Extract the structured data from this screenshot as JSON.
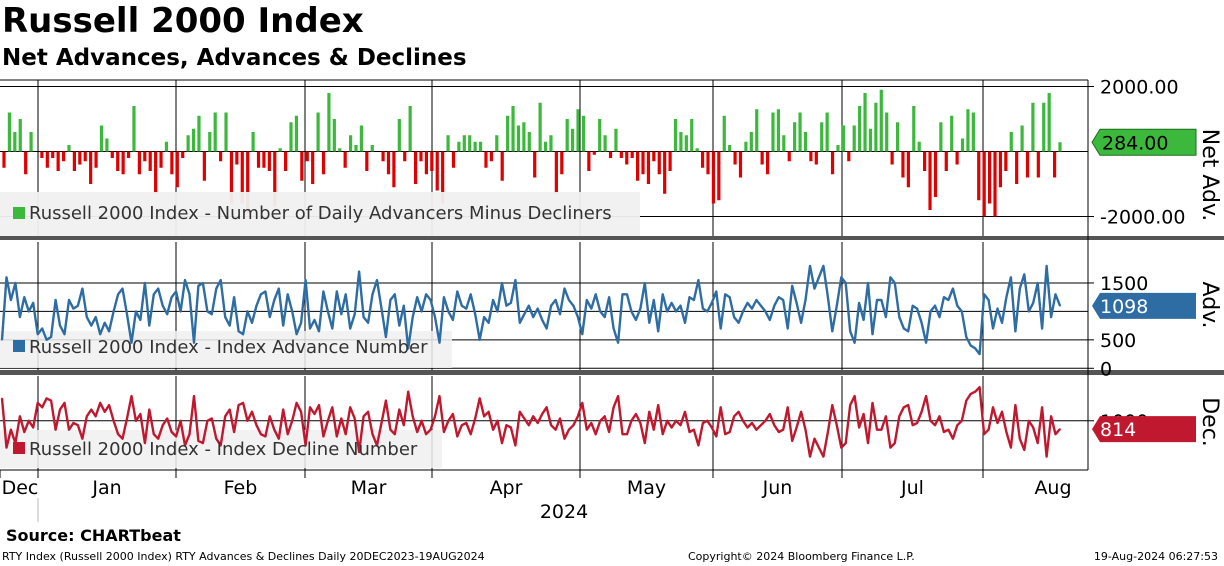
{
  "header": {
    "title": "Russell 2000 Index",
    "subtitle": "Net Advances, Advances & Declines"
  },
  "footer": {
    "source": "Source: CHARTbeat",
    "description": "RTY Index (Russell 2000 Index) RTY Advances & Declines  Daily 20DEC2023-19AUG2024",
    "copyright": "Copyright© 2024 Bloomberg Finance L.P.",
    "timestamp": "19-Aug-2024 06:27:53"
  },
  "colors": {
    "net_positive": "#3cb83c",
    "net_negative": "#e00000",
    "advances": "#2e6da4",
    "declines": "#c0182e",
    "net_tag": "#3cb83c",
    "adv_tag": "#2e6da4",
    "dec_tag": "#c0182e"
  },
  "chart_data": [
    {
      "type": "bar",
      "panel": "net",
      "axis_title": "Net Adv.",
      "legend": "Russell 2000 Index - Number of Daily Advancers Minus Decliners",
      "yticks": [
        "2000.00",
        "-2000.00"
      ],
      "ylim": [
        -2600,
        2200
      ],
      "last_value": 284,
      "last_label": "284.00",
      "values": [
        -500,
        1200,
        600,
        1000,
        -700,
        600,
        0,
        -200,
        -500,
        -200,
        -600,
        -300,
        200,
        -600,
        -400,
        -300,
        -1000,
        -500,
        800,
        400,
        -200,
        -600,
        -700,
        -200,
        1400,
        -700,
        -300,
        -600,
        -1300,
        -500,
        300,
        -700,
        -1100,
        -200,
        500,
        700,
        1100,
        -900,
        600,
        1200,
        -300,
        1200,
        -1600,
        -400,
        -1600,
        -1900,
        600,
        -500,
        -500,
        -600,
        -1700,
        100,
        -600,
        900,
        1100,
        -900,
        -300,
        -1000,
        1200,
        -700,
        1800,
        1000,
        100,
        -500,
        500,
        200,
        800,
        -600,
        200,
        0,
        -300,
        -700,
        -1100,
        1000,
        -300,
        1400,
        -1000,
        -300,
        -700,
        -600,
        -1200,
        -1600,
        500,
        -500,
        300,
        500,
        500,
        300,
        300,
        -500,
        -300,
        500,
        -900,
        1100,
        1400,
        800,
        900,
        600,
        -800,
        1500,
        300,
        500,
        -1300,
        -700,
        1000,
        700,
        1300,
        1100,
        -600,
        -100,
        1000,
        500,
        -200,
        700,
        -200,
        -400,
        -200,
        -900,
        -700,
        -1000,
        -300,
        -700,
        -1300,
        -600,
        1000,
        600,
        500,
        1000,
        100,
        -500,
        -700,
        -1600,
        -1500,
        1100,
        200,
        -400,
        -800,
        300,
        600,
        1300,
        -400,
        -700,
        1200,
        1300,
        500,
        -300,
        900,
        1200,
        600,
        -300,
        -400,
        900,
        1200,
        -700,
        200,
        800,
        -300,
        800,
        1400,
        1800,
        700,
        1500,
        1900,
        1200,
        -400,
        900,
        -800,
        -1100,
        1400,
        300,
        -600,
        -1800,
        -1400,
        900,
        -600,
        1100,
        -400,
        400,
        1300,
        1200,
        -1500,
        -2000,
        -1600,
        -2000,
        -1100,
        -600,
        600,
        -1000,
        800,
        -800,
        1500,
        -800,
        1500,
        1800,
        -800,
        284
      ]
    },
    {
      "type": "line",
      "panel": "advances",
      "axis_title": "Adv.",
      "legend": "Russell 2000 Index - Index Advance Number",
      "yticks": [
        1500,
        500,
        0
      ],
      "ylim": [
        -30,
        2220
      ],
      "last_value": 1098,
      "last_label": "1098",
      "values": [
        500,
        1600,
        1200,
        1500,
        900,
        1250,
        1000,
        1150,
        600,
        700,
        500,
        550,
        1200,
        750,
        600,
        1200,
        1050,
        1100,
        1400,
        900,
        750,
        900,
        600,
        800,
        650,
        1000,
        1300,
        1400,
        950,
        450,
        1000,
        850,
        1500,
        750,
        1300,
        1400,
        1100,
        950,
        1250,
        1350,
        1000,
        1550,
        1300,
        450,
        1450,
        1500,
        1000,
        950,
        1400,
        1550,
        900,
        750,
        1250,
        650,
        600,
        1000,
        800,
        1100,
        1300,
        1350,
        900,
        1200,
        1400,
        750,
        1300,
        1000,
        600,
        800,
        1550,
        700,
        850,
        650,
        1350,
        1000,
        700,
        1350,
        950,
        1300,
        700,
        950,
        1700,
        900,
        800,
        1300,
        1550,
        1050,
        550,
        1200,
        1300,
        750,
        1100,
        350,
        900,
        1250,
        1000,
        1300,
        1200,
        900,
        450,
        1250,
        1000,
        850,
        1350,
        1100,
        1050,
        1300,
        950,
        500,
        900,
        800,
        1200,
        1000,
        1500,
        1100,
        1150,
        1550,
        800,
        950,
        1100,
        900,
        1050,
        850,
        700,
        1100,
        1200,
        950,
        1400,
        1200,
        1100,
        900,
        600,
        1200,
        1050,
        1300,
        1000,
        900,
        1250,
        700,
        450,
        1300,
        1300,
        1000,
        850,
        1050,
        1500,
        800,
        1200,
        650,
        1300,
        1000,
        1150,
        1000,
        1100,
        800,
        1250,
        1200,
        1550,
        1050,
        1000,
        1150,
        1350,
        700,
        1300,
        1250,
        900,
        800,
        1000,
        1150,
        1050,
        1200,
        1100,
        1000,
        850,
        1100,
        1250,
        1200,
        700,
        1450,
        1150,
        800,
        1200,
        1800,
        1400,
        1600,
        1800,
        1250,
        650,
        1100,
        1600,
        1500,
        650,
        450,
        1150,
        850,
        1500,
        600,
        1200,
        1200,
        900,
        1600,
        1500,
        900,
        700,
        650,
        1100,
        1050,
        800,
        450,
        1000,
        1100,
        900,
        1250,
        1200,
        1400,
        1100,
        1000,
        550,
        400,
        350,
        250,
        1300,
        1200,
        700,
        1050,
        800,
        1250,
        1600,
        650,
        1400,
        1650,
        1000,
        1150,
        1500,
        700,
        1800,
        900,
        1300,
        1098
      ]
    },
    {
      "type": "line",
      "panel": "declines",
      "axis_title": "Dec.",
      "legend": "Russell 2000 Index - Index Decline Number",
      "yticks": [
        1000
      ],
      "ylim": [
        -100,
        2000
      ],
      "last_value": 814,
      "last_label": "814"
    }
  ],
  "x_axis": {
    "months": [
      "Dec",
      "Jan",
      "Feb",
      "Mar",
      "Apr",
      "May",
      "Jun",
      "Jul",
      "Aug"
    ],
    "year": "2024"
  }
}
